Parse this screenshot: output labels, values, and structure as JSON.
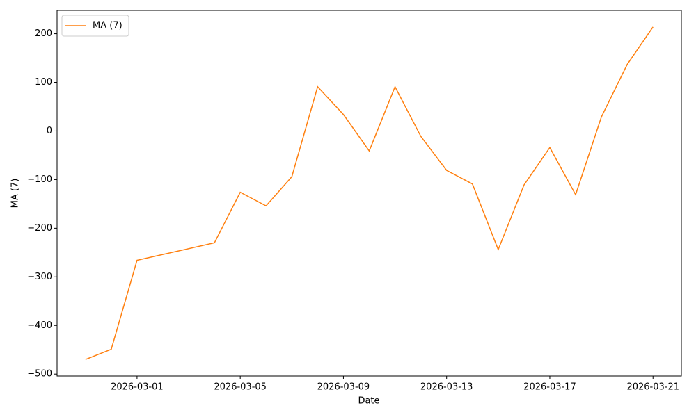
{
  "chart_data": {
    "type": "line",
    "x": [
      "2026-02-27",
      "2026-02-28",
      "2026-03-01",
      "2026-03-04",
      "2026-03-05",
      "2026-03-06",
      "2026-03-07",
      "2026-03-08",
      "2026-03-09",
      "2026-03-10",
      "2026-03-11",
      "2026-03-12",
      "2026-03-13",
      "2026-03-14",
      "2026-03-15",
      "2026-03-16",
      "2026-03-17",
      "2026-03-18",
      "2026-03-19",
      "2026-03-20",
      "2026-03-21"
    ],
    "series": [
      {
        "name": "MA (7)",
        "color": "#ff7f0e",
        "values": [
          -470,
          -449,
          -266,
          -230,
          -126,
          -154,
          -94,
          91,
          34,
          -41,
          91,
          -11,
          -81,
          -109,
          -244,
          -111,
          -34,
          -131,
          29,
          137,
          214
        ]
      }
    ],
    "x_label": "Date",
    "y_label": "MA (7)",
    "xlim": [
      "2026-02-25T21:36",
      "2026-03-22T02:24"
    ],
    "xticks": [
      "2026-03-01",
      "2026-03-05",
      "2026-03-09",
      "2026-03-13",
      "2026-03-17",
      "2026-03-21"
    ],
    "ylim": [
      -504,
      248
    ],
    "yticks": [
      {
        "value": -500,
        "label": "−500"
      },
      {
        "value": -400,
        "label": "−400"
      },
      {
        "value": -300,
        "label": "−300"
      },
      {
        "value": -200,
        "label": "−200"
      },
      {
        "value": -100,
        "label": "−100"
      },
      0,
      100,
      200
    ],
    "grid": false,
    "legend": "upper-left"
  }
}
